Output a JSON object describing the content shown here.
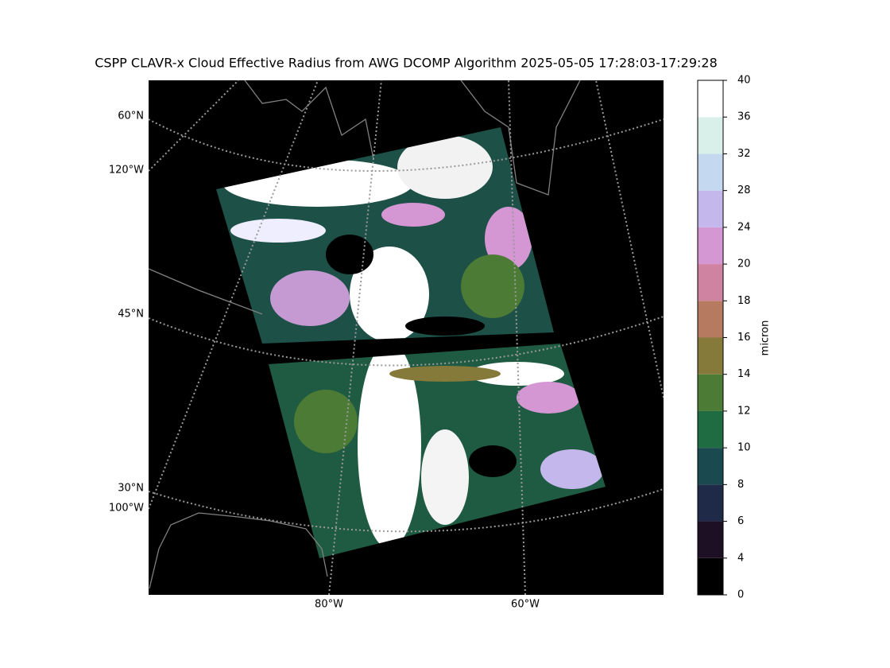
{
  "title": "CSPP CLAVR-x Cloud Effective Radius from AWG DCOMP Algorithm 2025-05-05 17:28:03-17:29:28",
  "map": {
    "lat_labels": [
      "60°N",
      "45°N",
      "30°N"
    ],
    "lon_labels": [
      "120°W",
      "100°W",
      "80°W",
      "60°W"
    ]
  },
  "colorbar": {
    "label": "micron",
    "boundaries": [
      0,
      4,
      6,
      8,
      10,
      12,
      14,
      16,
      18,
      20,
      24,
      28,
      32,
      36,
      40
    ],
    "colors": [
      "#000000",
      "#1d1025",
      "#1f2a49",
      "#1a4a4f",
      "#1f6b42",
      "#4c7b35",
      "#857a3a",
      "#b57a60",
      "#d083a0",
      "#d596d4",
      "#c3b7ec",
      "#c4d9f0",
      "#d9f0ea",
      "#ffffff"
    ]
  }
}
